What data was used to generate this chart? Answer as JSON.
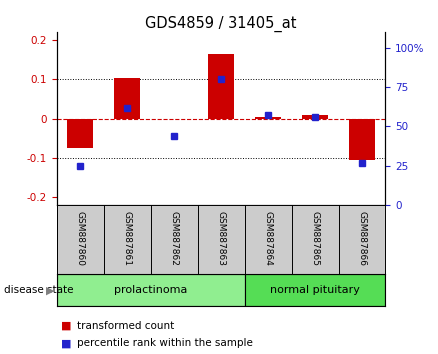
{
  "title": "GDS4859 / 31405_at",
  "samples": [
    "GSM887860",
    "GSM887861",
    "GSM887862",
    "GSM887863",
    "GSM887864",
    "GSM887865",
    "GSM887866"
  ],
  "transformed_count": [
    -0.075,
    0.104,
    -0.002,
    0.163,
    0.005,
    0.01,
    -0.105
  ],
  "percentile_rank": [
    25,
    62,
    44,
    80,
    57,
    56,
    27
  ],
  "groups": [
    {
      "label": "prolactinoma",
      "indices": [
        0,
        1,
        2,
        3
      ],
      "color": "#90EE90",
      "edge": "#44AA44"
    },
    {
      "label": "normal pituitary",
      "indices": [
        4,
        5,
        6
      ],
      "color": "#55DD55",
      "edge": "#44AA44"
    }
  ],
  "ylim_left": [
    -0.22,
    0.22
  ],
  "ylim_right": [
    0,
    110
  ],
  "yticks_left": [
    -0.2,
    -0.1,
    0.0,
    0.1,
    0.2
  ],
  "yticks_right": [
    0,
    25,
    50,
    75,
    100
  ],
  "ytick_labels_right": [
    "0",
    "25",
    "50",
    "75",
    "100%"
  ],
  "bar_color": "#CC0000",
  "dot_color": "#2222CC",
  "zero_line_color": "#CC0000",
  "grid_color": "#000000",
  "sample_bg_color": "#CCCCCC",
  "legend_entries": [
    "transformed count",
    "percentile rank within the sample"
  ],
  "disease_state_label": "disease state",
  "bar_width": 0.55
}
